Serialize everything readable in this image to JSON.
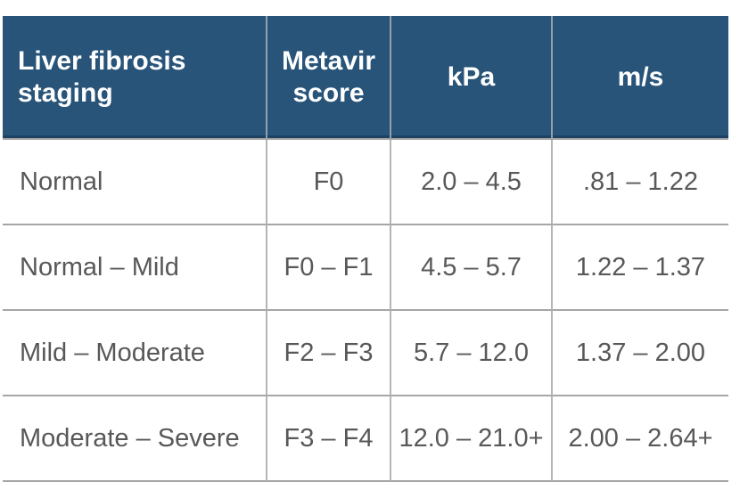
{
  "table": {
    "headers": [
      {
        "label": "Liver fibrosis staging"
      },
      {
        "label": "Metavir score"
      },
      {
        "label": "kPa"
      },
      {
        "label": "m/s"
      }
    ],
    "rows": [
      {
        "cells": [
          "Normal",
          "F0",
          "2.0 – 4.5",
          ".81 – 1.22"
        ]
      },
      {
        "cells": [
          "Normal – Mild",
          "F0 – F1",
          "4.5 – 5.7",
          "1.22 – 1.37"
        ]
      },
      {
        "cells": [
          "Mild – Moderate",
          "F2 – F3",
          "5.7 – 12.0",
          "1.37 – 2.00"
        ]
      },
      {
        "cells": [
          "Moderate – Severe",
          "F3 – F4",
          "12.0 – 21.0+",
          "2.00 – 2.64+"
        ]
      }
    ]
  },
  "colors": {
    "header_bg": "#28547A",
    "header_text": "#FFFFFF",
    "body_text": "#58585A",
    "grid_line": "#A6A6A6",
    "header_divider": "#93A0AB",
    "body_divider": "#B5B5B5",
    "page_bg": "#FFFFFF"
  }
}
